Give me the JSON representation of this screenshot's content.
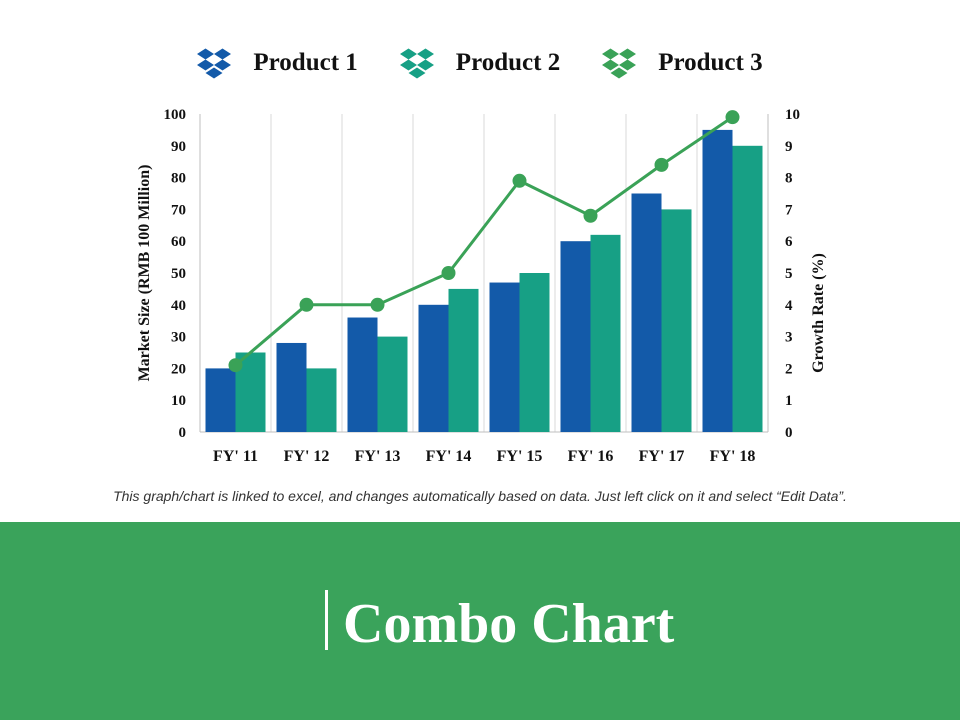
{
  "colors": {
    "product1": "#135aa9",
    "product2": "#17a085",
    "product3": "#3aa257",
    "banner": "#3aa35b"
  },
  "legend": [
    {
      "label": "Product 1",
      "icon": "dropbox-icon",
      "color": "#135aa9"
    },
    {
      "label": "Product 2",
      "icon": "dropbox-icon",
      "color": "#17a085"
    },
    {
      "label": "Product 3",
      "icon": "dropbox-icon",
      "color": "#3aa257"
    }
  ],
  "chart_data": {
    "type": "bar",
    "categories": [
      "FY' 11",
      "FY' 12",
      "FY' 13",
      "FY' 14",
      "FY' 15",
      "FY' 16",
      "FY' 17",
      "FY' 18"
    ],
    "series": [
      {
        "name": "Product 1",
        "type": "bar",
        "axis": "left",
        "values": [
          20,
          28,
          36,
          40,
          47,
          60,
          75,
          95
        ]
      },
      {
        "name": "Product 2",
        "type": "bar",
        "axis": "left",
        "values": [
          25,
          20,
          30,
          45,
          50,
          62,
          70,
          90
        ]
      },
      {
        "name": "Product 3",
        "type": "line",
        "axis": "right",
        "values": [
          2.1,
          4.0,
          4.0,
          5.0,
          7.9,
          6.8,
          8.4,
          9.9
        ]
      }
    ],
    "ylabel": "Market Size (RMB 100 Million)",
    "y2label": "Growth Rate (%)",
    "ylim": [
      0,
      100
    ],
    "y2lim": [
      0,
      10
    ],
    "yticks": [
      "0",
      "10",
      "20",
      "30",
      "40",
      "50",
      "60",
      "70",
      "80",
      "90",
      "100"
    ],
    "y2ticks": [
      "0",
      "1",
      "2",
      "3",
      "4",
      "5",
      "6",
      "7",
      "8",
      "9",
      "10"
    ],
    "grid": "vertical",
    "legend_position": "top"
  },
  "note": "This graph/chart is linked to excel, and changes automatically based on data. Just left click on it and select “Edit Data”.",
  "title": "Combo Chart"
}
